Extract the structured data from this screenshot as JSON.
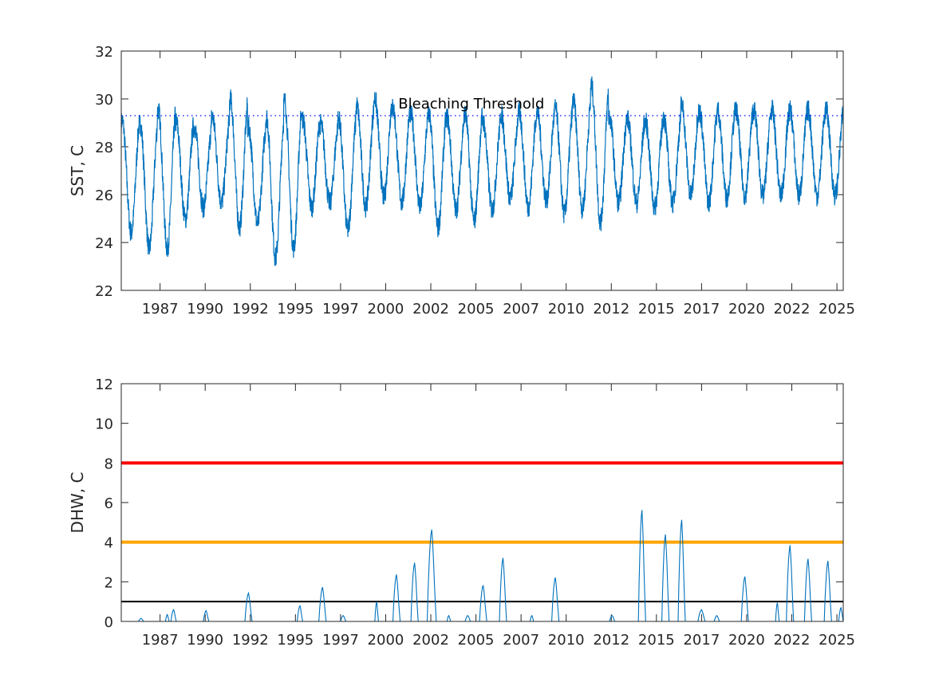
{
  "colors": {
    "series": "#0072bd",
    "threshold_dotted": "#0000ff",
    "red_line": "#ff0000",
    "orange_line": "#ffa500",
    "black_line": "#000000",
    "axis": "#262626"
  },
  "chart_data": [
    {
      "type": "line",
      "ylabel": "SST, C",
      "xlabel": "",
      "title": "",
      "xlim": [
        1985.25,
        2025.25
      ],
      "ylim": [
        22,
        32
      ],
      "yticks": [
        22,
        24,
        26,
        28,
        30,
        32
      ],
      "xticks": [
        {
          "value": 1987.4,
          "label": "1987"
        },
        {
          "value": 1989.9,
          "label": "1990"
        },
        {
          "value": 1992.4,
          "label": "1992"
        },
        {
          "value": 1994.9,
          "label": "1995"
        },
        {
          "value": 1997.4,
          "label": "1997"
        },
        {
          "value": 1999.9,
          "label": "2000"
        },
        {
          "value": 2002.4,
          "label": "2002"
        },
        {
          "value": 2004.9,
          "label": "2005"
        },
        {
          "value": 2007.4,
          "label": "2007"
        },
        {
          "value": 2009.9,
          "label": "2010"
        },
        {
          "value": 2012.4,
          "label": "2012"
        },
        {
          "value": 2014.9,
          "label": "2015"
        },
        {
          "value": 2017.4,
          "label": "2017"
        },
        {
          "value": 2019.9,
          "label": "2020"
        },
        {
          "value": 2022.4,
          "label": "2022"
        },
        {
          "value": 2024.9,
          "label": "2025"
        }
      ],
      "series": [
        {
          "style": "solid",
          "color": "#0072bd",
          "description": "seasonal SST cycle roughly between 24 and 29.5 C",
          "annual_peaks": [
            29.3,
            29.2,
            29.8,
            29.2,
            29.0,
            29.4,
            30.2,
            29.0,
            29.5,
            30.2,
            29.3,
            29.1,
            29.4,
            29.9,
            30.2,
            29.8,
            29.5,
            29.6,
            29.4,
            29.6,
            29.2,
            29.5,
            29.6,
            29.6,
            29.8,
            30.1,
            30.8,
            29.4,
            29.3,
            29.2,
            29.4,
            29.9,
            29.6,
            29.7,
            29.7,
            29.7
          ],
          "annual_troughs": [
            24.2,
            23.5,
            23.5,
            24.8,
            25.3,
            25.5,
            24.4,
            24.6,
            23.1,
            23.5,
            25.3,
            25.5,
            24.3,
            25.3,
            25.7,
            25.5,
            25.3,
            24.4,
            25.2,
            24.7,
            25.2,
            25.7,
            25.3,
            25.6,
            25.0,
            25.2,
            24.6,
            25.5,
            25.5,
            25.3,
            25.5,
            25.8,
            25.5,
            25.7,
            25.8
          ]
        },
        {
          "style": "dotted",
          "color": "#0000ff",
          "y": 29.3
        }
      ],
      "annotations": [
        {
          "text": "Bleaching Threshold",
          "x": 2000.6,
          "y": 29.6
        }
      ]
    },
    {
      "type": "line",
      "ylabel": "DHW, C",
      "xlabel": "",
      "title": "",
      "xlim": [
        1985.25,
        2025.25
      ],
      "ylim": [
        0,
        12
      ],
      "yticks": [
        0,
        2,
        4,
        6,
        8,
        10,
        12
      ],
      "xticks": [
        {
          "value": 1987.4,
          "label": "1987"
        },
        {
          "value": 1989.9,
          "label": "1990"
        },
        {
          "value": 1992.4,
          "label": "1992"
        },
        {
          "value": 1994.9,
          "label": "1995"
        },
        {
          "value": 1997.4,
          "label": "1997"
        },
        {
          "value": 1999.9,
          "label": "2000"
        },
        {
          "value": 2002.4,
          "label": "2002"
        },
        {
          "value": 2004.9,
          "label": "2005"
        },
        {
          "value": 2007.4,
          "label": "2007"
        },
        {
          "value": 2009.9,
          "label": "2010"
        },
        {
          "value": 2012.4,
          "label": "2012"
        },
        {
          "value": 2014.9,
          "label": "2015"
        },
        {
          "value": 2017.4,
          "label": "2017"
        },
        {
          "value": 2019.9,
          "label": "2020"
        },
        {
          "value": 2022.4,
          "label": "2022"
        },
        {
          "value": 2024.9,
          "label": "2025"
        }
      ],
      "reference_lines": [
        {
          "y": 8,
          "color": "#ff0000"
        },
        {
          "y": 4,
          "color": "#ffa500"
        },
        {
          "y": 1,
          "color": "#000000"
        }
      ],
      "series": [
        {
          "style": "solid",
          "color": "#0072bd",
          "events": [
            {
              "start": 1986.2,
              "end": 1986.5,
              "peak": 0.15
            },
            {
              "start": 1987.7,
              "end": 1987.9,
              "peak": 0.35
            },
            {
              "start": 1988.0,
              "end": 1988.3,
              "peak": 0.6
            },
            {
              "start": 1989.8,
              "end": 1990.1,
              "peak": 0.55
            },
            {
              "start": 1992.1,
              "end": 1992.5,
              "peak": 1.45
            },
            {
              "start": 1995.0,
              "end": 1995.3,
              "peak": 0.8
            },
            {
              "start": 1996.2,
              "end": 1996.6,
              "peak": 1.75
            },
            {
              "start": 1997.4,
              "end": 1997.7,
              "peak": 0.3
            },
            {
              "start": 1999.3,
              "end": 1999.5,
              "peak": 1.0
            },
            {
              "start": 2000.3,
              "end": 2000.7,
              "peak": 2.4
            },
            {
              "start": 2001.3,
              "end": 2001.7,
              "peak": 3.0
            },
            {
              "start": 2002.2,
              "end": 2002.7,
              "peak": 4.7
            },
            {
              "start": 2003.3,
              "end": 2003.5,
              "peak": 0.3
            },
            {
              "start": 2004.3,
              "end": 2004.6,
              "peak": 0.3
            },
            {
              "start": 2005.1,
              "end": 2005.5,
              "peak": 1.85
            },
            {
              "start": 2006.2,
              "end": 2006.6,
              "peak": 3.25
            },
            {
              "start": 2007.9,
              "end": 2008.1,
              "peak": 0.3
            },
            {
              "start": 2009.1,
              "end": 2009.5,
              "peak": 2.25
            },
            {
              "start": 2012.3,
              "end": 2012.6,
              "peak": 0.3
            },
            {
              "start": 2013.9,
              "end": 2014.3,
              "peak": 5.7
            },
            {
              "start": 2015.2,
              "end": 2015.6,
              "peak": 4.45
            },
            {
              "start": 2016.1,
              "end": 2016.5,
              "peak": 5.2
            },
            {
              "start": 2017.2,
              "end": 2017.6,
              "peak": 0.6
            },
            {
              "start": 2018.1,
              "end": 2018.4,
              "peak": 0.3
            },
            {
              "start": 2019.6,
              "end": 2020.0,
              "peak": 2.3
            },
            {
              "start": 2021.5,
              "end": 2021.7,
              "peak": 0.95
            },
            {
              "start": 2022.1,
              "end": 2022.5,
              "peak": 3.9
            },
            {
              "start": 2023.1,
              "end": 2023.5,
              "peak": 3.2
            },
            {
              "start": 2024.2,
              "end": 2024.6,
              "peak": 3.1
            },
            {
              "start": 2025.0,
              "end": 2025.25,
              "peak": 0.7
            }
          ]
        }
      ]
    }
  ]
}
